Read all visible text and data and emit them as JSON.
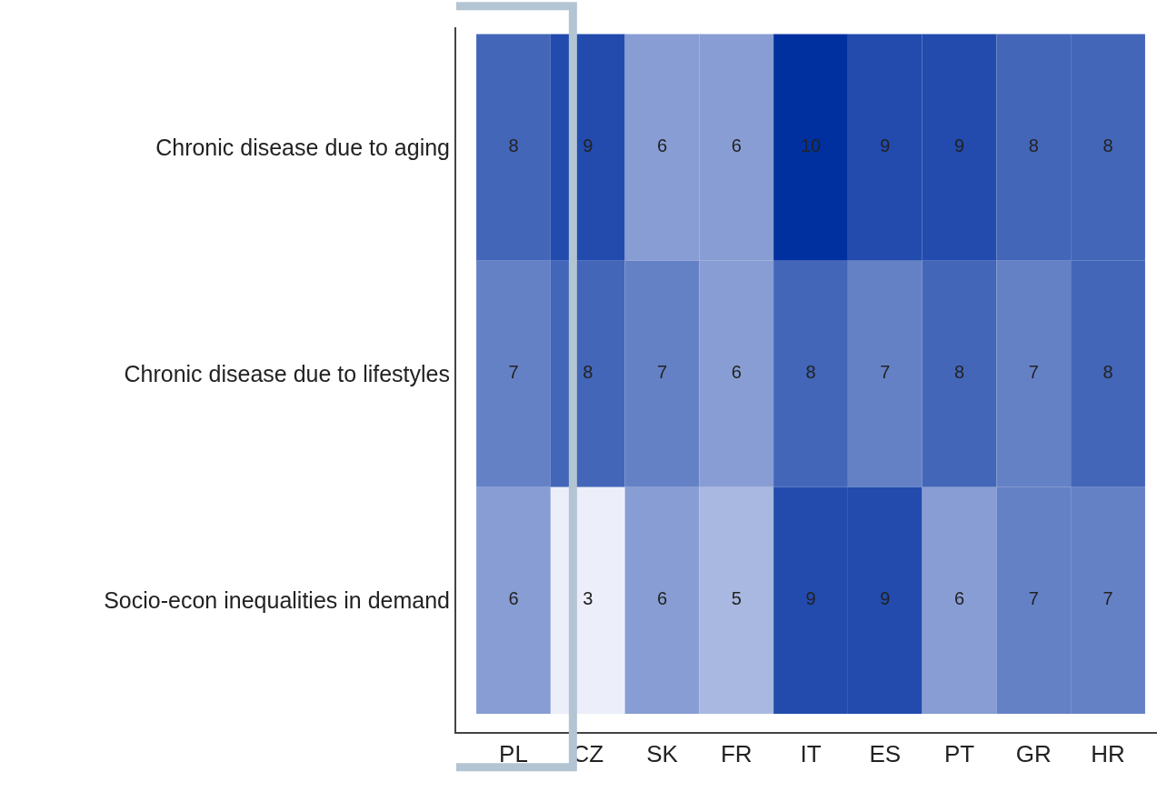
{
  "chart_data": {
    "type": "heatmap",
    "categories": [
      "PL",
      "CZ",
      "SK",
      "FR",
      "IT",
      "ES",
      "PT",
      "GR",
      "HR"
    ],
    "y_categories": [
      "Chronic disease due to aging",
      "Chronic disease due to lifestyles",
      "Socio-econ inequalities in demand"
    ],
    "cells": [
      [
        8,
        9,
        6,
        6,
        10,
        9,
        9,
        8,
        8
      ],
      [
        7,
        8,
        7,
        6,
        8,
        7,
        8,
        7,
        8
      ],
      [
        6,
        3,
        6,
        5,
        9,
        9,
        6,
        7,
        7
      ]
    ],
    "data_labels": true
  }
}
